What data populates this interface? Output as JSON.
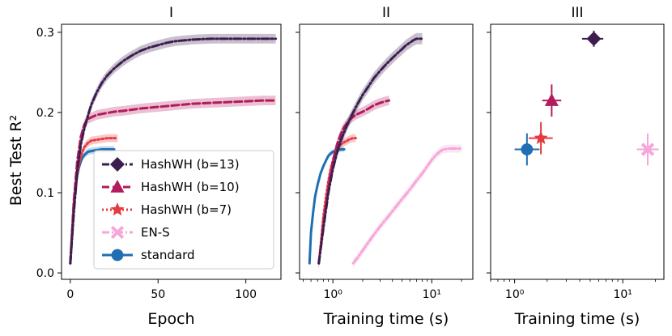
{
  "colors": {
    "b13": "#3b1e4e",
    "b10": "#b31b5c",
    "b7": "#e53a3f",
    "ens": "#f6a6d8",
    "standard": "#1f6fb2"
  },
  "legend": [
    {
      "key": "b13",
      "label": "HashWH (b=13)",
      "marker": "diamond",
      "dash": "dashdot"
    },
    {
      "key": "b10",
      "label": "HashWH (b=10)",
      "marker": "triangle",
      "dash": "dashed"
    },
    {
      "key": "b7",
      "label": "HashWH (b=7)",
      "marker": "star",
      "dash": "dotted"
    },
    {
      "key": "ens",
      "label": "EN-S",
      "marker": "x",
      "dash": "dashdot"
    },
    {
      "key": "standard",
      "label": "standard",
      "marker": "circle",
      "dash": "solid"
    }
  ],
  "ylabel": "Best Test R²",
  "chart_data": [
    {
      "title": "I",
      "type": "line",
      "xlabel": "Epoch",
      "xscale": "linear",
      "xlim": [
        -5,
        120
      ],
      "ylim": [
        -0.008,
        0.31
      ],
      "xticks": [
        {
          "v": 0,
          "label": "0"
        },
        {
          "v": 50,
          "label": "50"
        },
        {
          "v": 100,
          "label": "100"
        }
      ],
      "yticks": [
        {
          "v": 0.0,
          "label": "0.0"
        },
        {
          "v": 0.1,
          "label": "0.1"
        },
        {
          "v": 0.2,
          "label": "0.2"
        },
        {
          "v": 0.3,
          "label": "0.3"
        }
      ],
      "series": [
        {
          "key": "standard",
          "band": 0.004,
          "x": [
            0,
            1,
            2,
            3,
            4,
            5,
            6,
            7,
            8,
            9,
            10,
            12,
            15,
            18,
            20,
            22,
            25
          ],
          "y": [
            0.012,
            0.05,
            0.085,
            0.108,
            0.122,
            0.132,
            0.139,
            0.144,
            0.147,
            0.149,
            0.151,
            0.152,
            0.153,
            0.154,
            0.154,
            0.154,
            0.154
          ]
        },
        {
          "key": "b7",
          "band": 0.005,
          "x": [
            0,
            2,
            4,
            6,
            8,
            10,
            12,
            15,
            18,
            21,
            24,
            27
          ],
          "y": [
            0.012,
            0.08,
            0.124,
            0.146,
            0.157,
            0.162,
            0.165,
            0.166,
            0.167,
            0.168,
            0.168,
            0.168
          ]
        },
        {
          "key": "b10",
          "band": 0.006,
          "x": [
            0,
            2,
            4,
            6,
            8,
            10,
            15,
            20,
            25,
            30,
            40,
            50,
            60,
            70,
            80,
            90,
            100,
            110,
            117
          ],
          "y": [
            0.012,
            0.09,
            0.14,
            0.17,
            0.185,
            0.192,
            0.197,
            0.199,
            0.201,
            0.202,
            0.205,
            0.207,
            0.209,
            0.211,
            0.212,
            0.213,
            0.214,
            0.215,
            0.215
          ]
        },
        {
          "key": "b13",
          "band": 0.006,
          "x": [
            0,
            2,
            4,
            6,
            8,
            10,
            12,
            15,
            18,
            21,
            25,
            30,
            35,
            40,
            45,
            50,
            55,
            60,
            70,
            80,
            90,
            100,
            110,
            117
          ],
          "y": [
            0.012,
            0.075,
            0.128,
            0.16,
            0.18,
            0.196,
            0.21,
            0.225,
            0.237,
            0.246,
            0.255,
            0.264,
            0.271,
            0.277,
            0.281,
            0.284,
            0.287,
            0.289,
            0.291,
            0.292,
            0.292,
            0.292,
            0.292,
            0.292
          ]
        }
      ]
    },
    {
      "title": "II",
      "type": "line",
      "xlabel": "Training time (s)",
      "xscale": "log",
      "xlim": [
        0.46,
        26
      ],
      "ylim": [
        -0.008,
        0.31
      ],
      "xticks": [
        {
          "v": 1,
          "label": "10⁰"
        },
        {
          "v": 10,
          "label": "10¹"
        }
      ],
      "yticks": [
        {
          "v": 0.0,
          "label": ""
        },
        {
          "v": 0.1,
          "label": ""
        },
        {
          "v": 0.2,
          "label": ""
        },
        {
          "v": 0.3,
          "label": ""
        }
      ],
      "series": [
        {
          "key": "standard",
          "band": 0.003,
          "x": [
            0.58,
            0.6,
            0.63,
            0.66,
            0.7,
            0.75,
            0.8,
            0.85,
            0.9,
            0.95,
            1.0,
            1.1,
            1.2,
            1.3
          ],
          "y": [
            0.012,
            0.05,
            0.075,
            0.095,
            0.11,
            0.124,
            0.133,
            0.14,
            0.146,
            0.149,
            0.151,
            0.153,
            0.154,
            0.154
          ]
        },
        {
          "key": "b7",
          "band": 0.005,
          "x": [
            0.72,
            0.76,
            0.8,
            0.85,
            0.9,
            0.95,
            1.0,
            1.05,
            1.1,
            1.2,
            1.3,
            1.4,
            1.5,
            1.6,
            1.7
          ],
          "y": [
            0.012,
            0.04,
            0.07,
            0.095,
            0.115,
            0.13,
            0.14,
            0.148,
            0.154,
            0.16,
            0.163,
            0.165,
            0.167,
            0.168,
            0.168
          ]
        },
        {
          "key": "b10",
          "band": 0.006,
          "x": [
            0.72,
            0.8,
            0.9,
            1.0,
            1.1,
            1.2,
            1.3,
            1.5,
            1.7,
            2.0,
            2.3,
            2.6,
            3.0,
            3.4,
            3.7
          ],
          "y": [
            0.012,
            0.06,
            0.105,
            0.14,
            0.16,
            0.173,
            0.182,
            0.192,
            0.197,
            0.201,
            0.205,
            0.209,
            0.212,
            0.214,
            0.215
          ]
        },
        {
          "key": "b13",
          "band": 0.007,
          "x": [
            0.72,
            0.8,
            0.9,
            1.0,
            1.1,
            1.2,
            1.4,
            1.6,
            1.8,
            2.0,
            2.3,
            2.6,
            3.0,
            3.5,
            4.0,
            4.5,
            5.0,
            5.5,
            6.0,
            6.5,
            7.0,
            8.0
          ],
          "y": [
            0.012,
            0.055,
            0.1,
            0.13,
            0.15,
            0.165,
            0.185,
            0.2,
            0.212,
            0.222,
            0.233,
            0.243,
            0.252,
            0.261,
            0.268,
            0.274,
            0.279,
            0.284,
            0.287,
            0.29,
            0.292,
            0.292
          ]
        },
        {
          "key": "ens",
          "band": 0.005,
          "x": [
            1.6,
            1.8,
            2.0,
            2.5,
            3.0,
            3.5,
            4.0,
            4.5,
            5.0,
            6.0,
            7.0,
            8.0,
            9.0,
            10.0,
            11.0,
            12.0,
            13.0,
            15.0,
            17.0,
            20.0
          ],
          "y": [
            0.012,
            0.02,
            0.028,
            0.045,
            0.058,
            0.068,
            0.077,
            0.085,
            0.092,
            0.104,
            0.115,
            0.124,
            0.133,
            0.141,
            0.147,
            0.151,
            0.154,
            0.155,
            0.155,
            0.155
          ]
        }
      ]
    },
    {
      "title": "III",
      "type": "scatter",
      "xlabel": "Training time (s)",
      "xscale": "log",
      "xlim": [
        0.6,
        24
      ],
      "ylim": [
        -0.008,
        0.31
      ],
      "xticks": [
        {
          "v": 1,
          "label": "10⁰"
        },
        {
          "v": 10,
          "label": "10¹"
        }
      ],
      "yticks": [
        {
          "v": 0.0,
          "label": ""
        },
        {
          "v": 0.1,
          "label": ""
        },
        {
          "v": 0.2,
          "label": ""
        },
        {
          "v": 0.3,
          "label": ""
        }
      ],
      "points": [
        {
          "key": "b13",
          "x": 5.4,
          "y": 0.292,
          "xerr": [
            4.2,
            6.6
          ],
          "yerr": [
            0.282,
            0.302
          ]
        },
        {
          "key": "b10",
          "x": 2.2,
          "y": 0.215,
          "xerr": [
            1.8,
            2.7
          ],
          "yerr": [
            0.195,
            0.235
          ]
        },
        {
          "key": "b7",
          "x": 1.75,
          "y": 0.168,
          "xerr": [
            1.35,
            2.25
          ],
          "yerr": [
            0.148,
            0.188
          ]
        },
        {
          "key": "standard",
          "x": 1.3,
          "y": 0.154,
          "xerr": [
            1.0,
            1.7
          ],
          "yerr": [
            0.134,
            0.174
          ]
        },
        {
          "key": "ens",
          "x": 17.0,
          "y": 0.154,
          "xerr": [
            13.5,
            21.5
          ],
          "yerr": [
            0.134,
            0.174
          ]
        }
      ]
    }
  ]
}
